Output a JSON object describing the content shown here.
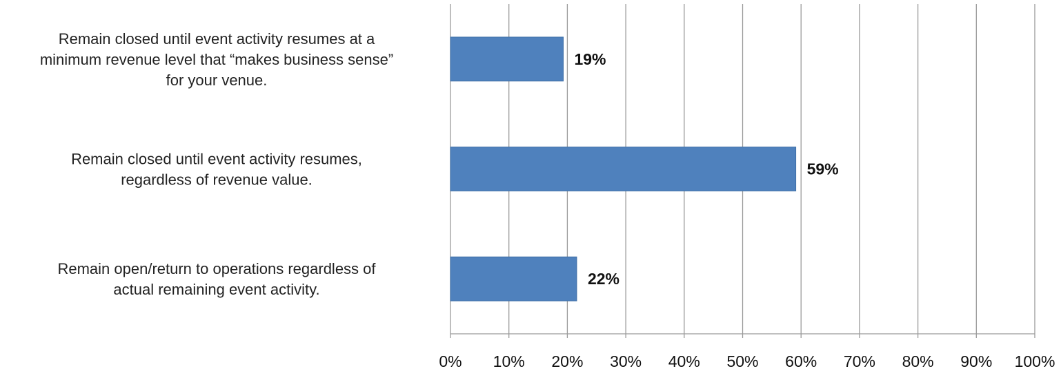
{
  "chart_data": {
    "type": "bar",
    "orientation": "horizontal",
    "categories": [
      [
        "Remain closed until event activity resumes at a",
        "minimum revenue level that “makes business sense”",
        "for your venue."
      ],
      [
        "Remain closed until event activity resumes,",
        "regardless of revenue value."
      ],
      [
        "Remain open/return to operations regardless of",
        "actual remaining event activity."
      ]
    ],
    "values": [
      19.3,
      59.1,
      21.6
    ],
    "data_labels": [
      "19%",
      "59%",
      "22%"
    ],
    "xlim": [
      0,
      100
    ],
    "xticks": [
      0,
      10,
      20,
      30,
      40,
      50,
      60,
      70,
      80,
      90,
      100
    ],
    "tick_labels": [
      "0%",
      "10%",
      "20%",
      "30%",
      "40%",
      "50%",
      "60%",
      "70%",
      "80%",
      "90%",
      "100%"
    ],
    "grid": "vertical",
    "legend": "none",
    "title": "",
    "xlabel": "",
    "ylabel": "",
    "colors": {
      "bar": "#4f81bd",
      "bar_edge": "#3e6ea6",
      "grid": "#9a9a9a"
    }
  }
}
